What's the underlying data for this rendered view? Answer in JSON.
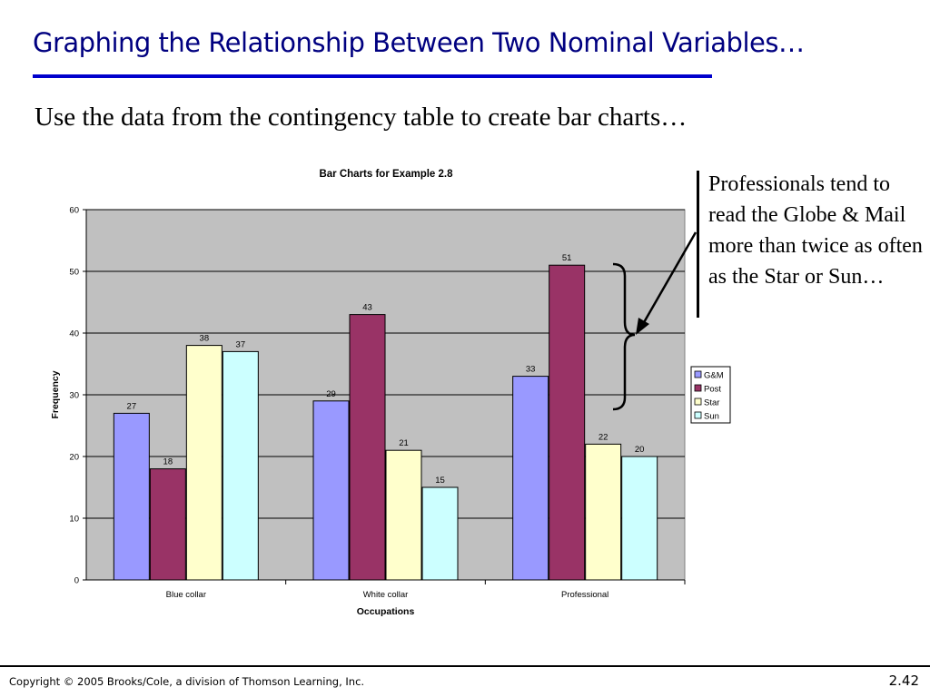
{
  "slide": {
    "title": "Graphing the Relationship Between Two Nominal Variables…",
    "subtitle": "Use the data from the contingency table to create bar charts…",
    "callout": "Professionals tend to read the Globe & Mail more than twice as often as the Star or Sun…",
    "copyright": "Copyright © 2005 Brooks/Cole, a division of Thomson Learning, Inc.",
    "page_number": "2.42"
  },
  "chart_data": {
    "type": "bar",
    "title": "Bar Charts for Example 2.8",
    "xlabel": "Occupations",
    "ylabel": "Frequency",
    "ylim": [
      0,
      60
    ],
    "yticks": [
      0,
      10,
      20,
      30,
      40,
      50,
      60
    ],
    "categories": [
      "Blue collar",
      "White collar",
      "Professional"
    ],
    "series": [
      {
        "name": "G&M",
        "color": "#9999ff",
        "values": [
          27,
          29,
          33
        ]
      },
      {
        "name": "Post",
        "color": "#993366",
        "values": [
          18,
          43,
          51
        ]
      },
      {
        "name": "Star",
        "color": "#ffffcc",
        "values": [
          38,
          21,
          22
        ]
      },
      {
        "name": "Sun",
        "color": "#ccffff",
        "values": [
          37,
          15,
          20
        ]
      }
    ],
    "plot_background": "#c0c0c0",
    "grid": true,
    "legend": "right",
    "data_labels": true
  }
}
